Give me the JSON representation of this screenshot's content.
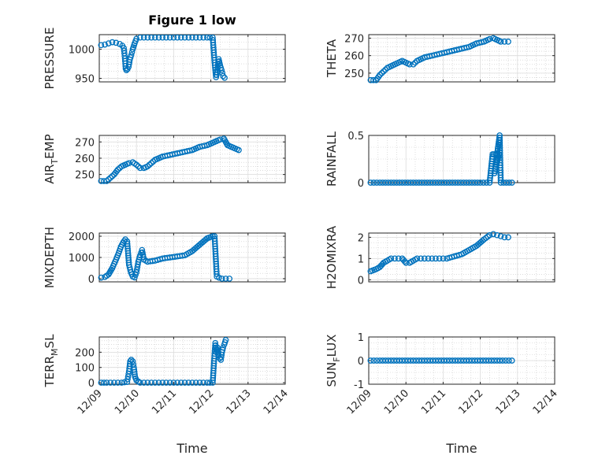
{
  "figure": {
    "title": "Figure 1 low"
  },
  "colors": {
    "marker": "#0072BD",
    "axis": "#262626"
  },
  "xaxis": {
    "label": "Time",
    "range": [
      0,
      5
    ],
    "ticks": [
      0,
      1,
      2,
      3,
      4,
      5
    ],
    "tick_labels": [
      "12/09",
      "12/10",
      "12/11",
      "12/12",
      "12/13",
      "12/14"
    ]
  },
  "chart_data": [
    {
      "type": "scatter",
      "panel": "top-left",
      "ylabel": "PRESSURE",
      "title": "Figure 1 low",
      "ylim": [
        944,
        1025
      ],
      "yticks": [
        950,
        1000
      ],
      "ytick_labels": [
        "950",
        "1000"
      ],
      "series": [
        {
          "name": "PRESSURE",
          "points": [
            [
              0.05,
              1007
            ],
            [
              0.15,
              1008
            ],
            [
              0.25,
              1010
            ],
            [
              0.35,
              1012
            ],
            [
              0.45,
              1011
            ],
            [
              0.55,
              1009
            ],
            [
              0.62,
              1006
            ],
            [
              0.66,
              1002
            ],
            [
              0.69,
              984
            ],
            [
              0.71,
              967
            ],
            [
              0.73,
              964
            ],
            [
              0.76,
              966
            ],
            [
              0.79,
              970
            ],
            [
              0.82,
              982
            ],
            [
              0.86,
              990
            ],
            [
              0.9,
              1000
            ],
            [
              0.95,
              1010
            ],
            [
              1.0,
              1018
            ],
            [
              1.1,
              1020
            ],
            [
              1.3,
              1020
            ],
            [
              1.5,
              1020
            ],
            [
              1.7,
              1020
            ],
            [
              1.9,
              1020
            ],
            [
              2.1,
              1020
            ],
            [
              2.3,
              1020
            ],
            [
              2.5,
              1020
            ],
            [
              2.7,
              1020
            ],
            [
              2.9,
              1020
            ],
            [
              3.05,
              1020
            ],
            [
              3.1,
              977
            ],
            [
              3.14,
              952
            ],
            [
              3.17,
              960
            ],
            [
              3.21,
              983
            ],
            [
              3.25,
              972
            ],
            [
              3.29,
              964
            ],
            [
              3.33,
              954
            ],
            [
              3.37,
              951
            ]
          ]
        }
      ]
    },
    {
      "type": "scatter",
      "panel": "top-right",
      "ylabel": "THETA",
      "ylim": [
        245,
        272
      ],
      "yticks": [
        250,
        260,
        270
      ],
      "ytick_labels": [
        "250",
        "260",
        "270"
      ],
      "series": [
        {
          "name": "THETA",
          "points": [
            [
              0.05,
              246
            ],
            [
              0.2,
              246
            ],
            [
              0.3,
              249
            ],
            [
              0.4,
              251
            ],
            [
              0.5,
              253
            ],
            [
              0.6,
              254
            ],
            [
              0.7,
              255
            ],
            [
              0.8,
              256
            ],
            [
              0.9,
              257
            ],
            [
              1.0,
              256
            ],
            [
              1.1,
              255
            ],
            [
              1.2,
              255
            ],
            [
              1.3,
              257
            ],
            [
              1.5,
              259
            ],
            [
              1.7,
              260
            ],
            [
              1.9,
              261
            ],
            [
              2.1,
              262
            ],
            [
              2.3,
              263
            ],
            [
              2.5,
              264
            ],
            [
              2.7,
              265
            ],
            [
              2.9,
              267
            ],
            [
              3.1,
              268
            ],
            [
              3.25,
              269.5
            ],
            [
              3.35,
              270
            ],
            [
              3.45,
              269
            ],
            [
              3.55,
              268
            ],
            [
              3.65,
              268
            ],
            [
              3.75,
              268
            ]
          ]
        }
      ]
    },
    {
      "type": "scatter",
      "panel": "second-left",
      "ylabel": "AIR_TEMP",
      "ylim": [
        245,
        274
      ],
      "yticks": [
        250,
        260,
        270
      ],
      "ytick_labels": [
        "250",
        "260",
        "270"
      ],
      "series": [
        {
          "name": "AIR_TEMP",
          "points": [
            [
              0.05,
              246
            ],
            [
              0.2,
              246
            ],
            [
              0.3,
              248
            ],
            [
              0.4,
              250
            ],
            [
              0.5,
              253
            ],
            [
              0.6,
              255
            ],
            [
              0.7,
              256
            ],
            [
              0.8,
              257
            ],
            [
              0.9,
              257.5
            ],
            [
              1.0,
              256
            ],
            [
              1.1,
              254
            ],
            [
              1.2,
              254
            ],
            [
              1.3,
              255
            ],
            [
              1.4,
              257
            ],
            [
              1.5,
              259
            ],
            [
              1.7,
              261
            ],
            [
              1.9,
              262
            ],
            [
              2.1,
              263
            ],
            [
              2.3,
              264
            ],
            [
              2.5,
              265
            ],
            [
              2.7,
              267
            ],
            [
              2.9,
              268
            ],
            [
              3.1,
              270
            ],
            [
              3.25,
              271.5
            ],
            [
              3.35,
              272
            ],
            [
              3.45,
              268
            ],
            [
              3.55,
              267
            ],
            [
              3.65,
              266
            ],
            [
              3.75,
              265
            ]
          ]
        }
      ]
    },
    {
      "type": "scatter",
      "panel": "second-right",
      "ylabel": "RAINFALL",
      "ylim": [
        0,
        0.5
      ],
      "yticks": [
        0,
        0.5
      ],
      "ytick_labels": [
        "0",
        "0.5"
      ],
      "series": [
        {
          "name": "RAINFALL",
          "points": [
            [
              0.05,
              0
            ],
            [
              0.3,
              0
            ],
            [
              0.6,
              0
            ],
            [
              0.9,
              0
            ],
            [
              1.2,
              0
            ],
            [
              1.5,
              0
            ],
            [
              1.8,
              0
            ],
            [
              2.1,
              0
            ],
            [
              2.4,
              0
            ],
            [
              2.7,
              0
            ],
            [
              3.0,
              0
            ],
            [
              3.25,
              0
            ],
            [
              3.33,
              0.3
            ],
            [
              3.37,
              0.3
            ],
            [
              3.42,
              0.3
            ],
            [
              3.46,
              0.3
            ],
            [
              3.5,
              0.3
            ],
            [
              3.38,
              0.1
            ],
            [
              3.52,
              0.5
            ],
            [
              3.55,
              0
            ],
            [
              3.7,
              0
            ],
            [
              3.85,
              0
            ]
          ]
        }
      ]
    },
    {
      "type": "scatter",
      "panel": "third-left",
      "ylabel": "MIXDEPTH",
      "ylim": [
        -150,
        2150
      ],
      "yticks": [
        0,
        1000,
        2000
      ],
      "ytick_labels": [
        "0",
        "1000",
        "2000"
      ],
      "series": [
        {
          "name": "MIXDEPTH",
          "points": [
            [
              0.05,
              50
            ],
            [
              0.15,
              80
            ],
            [
              0.25,
              200
            ],
            [
              0.35,
              500
            ],
            [
              0.45,
              900
            ],
            [
              0.52,
              1200
            ],
            [
              0.58,
              1500
            ],
            [
              0.64,
              1700
            ],
            [
              0.7,
              1850
            ],
            [
              0.75,
              1750
            ],
            [
              0.8,
              650
            ],
            [
              0.85,
              300
            ],
            [
              0.9,
              100
            ],
            [
              0.95,
              60
            ],
            [
              1.0,
              300
            ],
            [
              1.05,
              800
            ],
            [
              1.1,
              1100
            ],
            [
              1.15,
              1350
            ],
            [
              1.2,
              900
            ],
            [
              1.3,
              800
            ],
            [
              1.5,
              850
            ],
            [
              1.7,
              950
            ],
            [
              1.9,
              1000
            ],
            [
              2.1,
              1050
            ],
            [
              2.3,
              1100
            ],
            [
              2.5,
              1300
            ],
            [
              2.7,
              1600
            ],
            [
              2.9,
              1900
            ],
            [
              3.05,
              2000
            ],
            [
              3.1,
              2000
            ],
            [
              3.13,
              1050
            ],
            [
              3.16,
              100
            ],
            [
              3.22,
              50
            ],
            [
              3.3,
              0
            ],
            [
              3.4,
              0
            ],
            [
              3.5,
              0
            ]
          ]
        }
      ]
    },
    {
      "type": "scatter",
      "panel": "third-right",
      "ylabel": "H2OMIXRA",
      "ylim": [
        -0.1,
        2.2
      ],
      "yticks": [
        0,
        1,
        2
      ],
      "ytick_labels": [
        "0",
        "1",
        "2"
      ],
      "series": [
        {
          "name": "H2OMIXRA",
          "points": [
            [
              0.05,
              0.4
            ],
            [
              0.2,
              0.5
            ],
            [
              0.3,
              0.6
            ],
            [
              0.4,
              0.8
            ],
            [
              0.5,
              0.9
            ],
            [
              0.6,
              1.0
            ],
            [
              0.7,
              1.0
            ],
            [
              0.8,
              1.0
            ],
            [
              0.9,
              1.0
            ],
            [
              1.0,
              0.8
            ],
            [
              1.1,
              0.8
            ],
            [
              1.2,
              0.9
            ],
            [
              1.3,
              1.0
            ],
            [
              1.5,
              1.0
            ],
            [
              1.7,
              1.0
            ],
            [
              1.9,
              1.0
            ],
            [
              2.1,
              1.0
            ],
            [
              2.3,
              1.1
            ],
            [
              2.5,
              1.2
            ],
            [
              2.7,
              1.4
            ],
            [
              2.9,
              1.6
            ],
            [
              3.1,
              1.9
            ],
            [
              3.25,
              2.1
            ],
            [
              3.35,
              2.15
            ],
            [
              3.45,
              2.1
            ],
            [
              3.55,
              2.05
            ],
            [
              3.65,
              2.0
            ],
            [
              3.75,
              2.0
            ]
          ]
        }
      ]
    },
    {
      "type": "scatter",
      "panel": "bottom-left",
      "ylabel": "TERR_MSL",
      "ylim": [
        -10,
        300
      ],
      "yticks": [
        0,
        100,
        200
      ],
      "ytick_labels": [
        "0",
        "100",
        "200"
      ],
      "series": [
        {
          "name": "TERR_MSL",
          "points": [
            [
              0.05,
              0
            ],
            [
              0.2,
              0
            ],
            [
              0.4,
              0
            ],
            [
              0.6,
              0
            ],
            [
              0.75,
              5
            ],
            [
              0.8,
              75
            ],
            [
              0.83,
              140
            ],
            [
              0.86,
              150
            ],
            [
              0.9,
              140
            ],
            [
              0.93,
              100
            ],
            [
              0.96,
              40
            ],
            [
              1.0,
              15
            ],
            [
              1.1,
              0
            ],
            [
              1.3,
              0
            ],
            [
              1.5,
              0
            ],
            [
              1.7,
              0
            ],
            [
              1.9,
              0
            ],
            [
              2.1,
              0
            ],
            [
              2.3,
              0
            ],
            [
              2.5,
              0
            ],
            [
              2.7,
              0
            ],
            [
              2.9,
              0
            ],
            [
              3.05,
              0
            ],
            [
              3.1,
              190
            ],
            [
              3.12,
              260
            ],
            [
              3.15,
              200
            ],
            [
              3.18,
              230
            ],
            [
              3.21,
              180
            ],
            [
              3.24,
              160
            ],
            [
              3.27,
              150
            ],
            [
              3.3,
              200
            ],
            [
              3.33,
              230
            ],
            [
              3.36,
              250
            ],
            [
              3.4,
              280
            ]
          ]
        }
      ]
    },
    {
      "type": "scatter",
      "panel": "bottom-right",
      "ylabel": "SUN_FLUX",
      "ylim": [
        -1,
        1
      ],
      "yticks": [
        -1,
        0,
        1
      ],
      "ytick_labels": [
        "-1",
        "0",
        "1"
      ],
      "series": [
        {
          "name": "SUN_FLUX",
          "points": [
            [
              0.05,
              0
            ],
            [
              0.3,
              0
            ],
            [
              0.6,
              0
            ],
            [
              0.9,
              0
            ],
            [
              1.2,
              0
            ],
            [
              1.5,
              0
            ],
            [
              1.8,
              0
            ],
            [
              2.1,
              0
            ],
            [
              2.4,
              0
            ],
            [
              2.7,
              0
            ],
            [
              3.0,
              0
            ],
            [
              3.3,
              0
            ],
            [
              3.6,
              0
            ],
            [
              3.85,
              0
            ]
          ]
        }
      ]
    }
  ]
}
